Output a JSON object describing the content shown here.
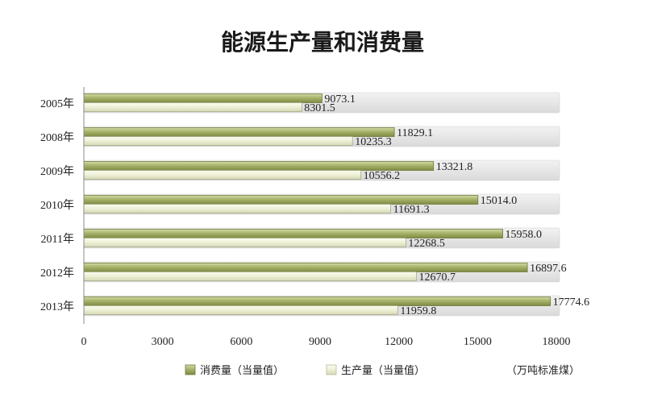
{
  "chart_data": {
    "type": "bar",
    "orientation": "horizontal",
    "title": "能源生产量和消费量",
    "unit": "（万吨标准煤）",
    "categories": [
      "2005年",
      "2008年",
      "2009年",
      "2010年",
      "2011年",
      "2012年",
      "2013年"
    ],
    "series": [
      {
        "name": "消费量（当量值）",
        "color": "#9aa85a",
        "values": [
          9073.1,
          11829.1,
          13321.8,
          15014.0,
          15958.0,
          16897.6,
          17774.6
        ]
      },
      {
        "name": "生产量（当量值）",
        "color": "#f0f2d8",
        "values": [
          8301.5,
          10235.3,
          10556.2,
          11691.3,
          12268.5,
          12670.7,
          11959.8
        ]
      }
    ],
    "xlim": [
      0,
      18000
    ],
    "xticks": [
      0,
      3000,
      6000,
      9000,
      12000,
      15000,
      18000
    ],
    "value_labels": [
      [
        "9073.1",
        "11829.1",
        "13321.8",
        "15014.0",
        "15958.0",
        "16897.6",
        "17774.6"
      ],
      [
        "8301.5",
        "10235.3",
        "10556.2",
        "11691.3",
        "12268.5",
        "12670.7",
        "11959.8"
      ]
    ],
    "legend_position": "bottom",
    "grid": false
  }
}
